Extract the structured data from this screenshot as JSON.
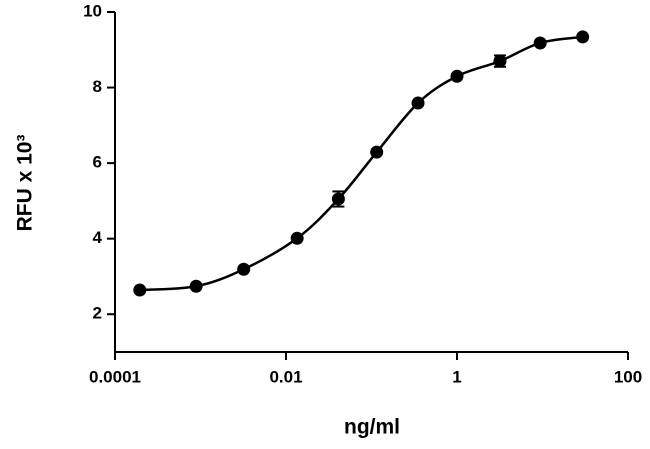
{
  "chart_data": {
    "type": "scatter",
    "x_label": "ng/ml",
    "y_label": "RFU x 10³",
    "x": [
      0.000195,
      0.00089,
      0.0032,
      0.0135,
      0.041,
      0.115,
      0.35,
      1.0,
      3.18,
      9.4,
      29.5
    ],
    "y": [
      2.64,
      2.74,
      3.19,
      4.01,
      5.05,
      6.29,
      7.59,
      8.3,
      8.7,
      9.18,
      9.34
    ],
    "errors": [
      null,
      null,
      null,
      null,
      0.2,
      null,
      null,
      null,
      0.15,
      null,
      null
    ],
    "color": "#000000",
    "xscale": "log",
    "xlim": [
      0.0001,
      100
    ],
    "xticks": [
      0.0001,
      0.01,
      1,
      100
    ],
    "ylim": [
      1,
      10
    ],
    "yticks": [
      2,
      4,
      6,
      8,
      10
    ]
  }
}
